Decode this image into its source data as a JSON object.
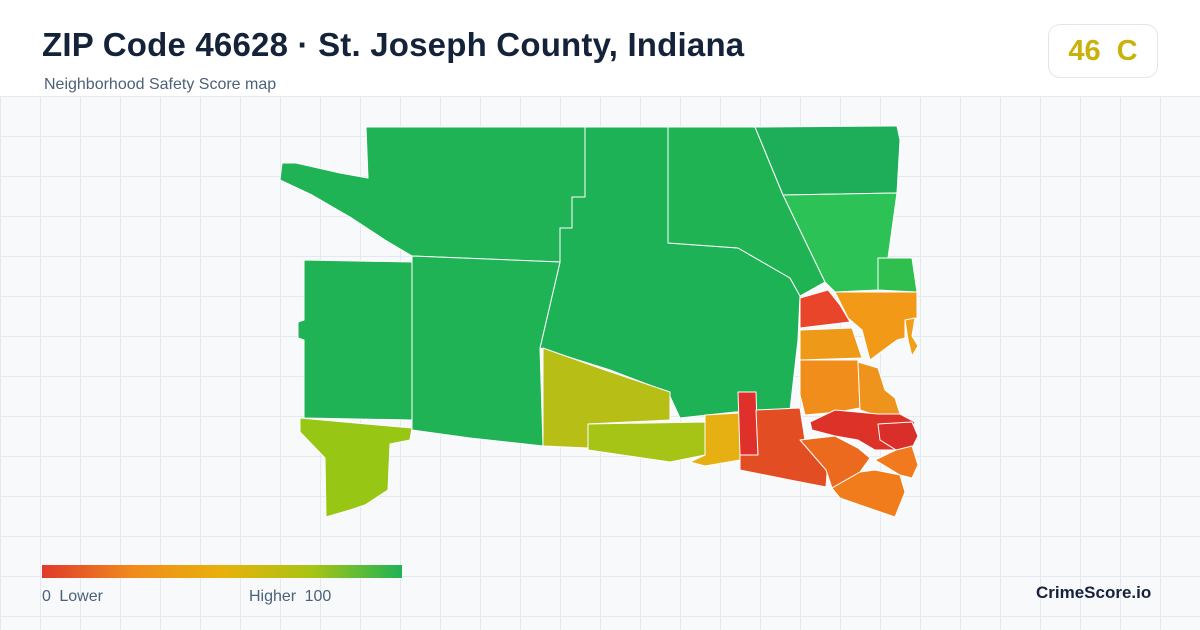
{
  "header": {
    "title": "ZIP Code 46628 · St. Joseph County, Indiana",
    "subtitle": "Neighborhood Safety Score map"
  },
  "score_badge": {
    "score": "46",
    "grade": "C",
    "color": "#c9b20c"
  },
  "legend": {
    "min_label": "0  Lower",
    "max_label": "Higher  100",
    "scale_min": 0,
    "scale_max": 100,
    "colors": [
      "#e03a2c",
      "#f08a1c",
      "#e8b10c",
      "#a8c414",
      "#1fb356"
    ]
  },
  "brand": "CrimeScore.io"
}
